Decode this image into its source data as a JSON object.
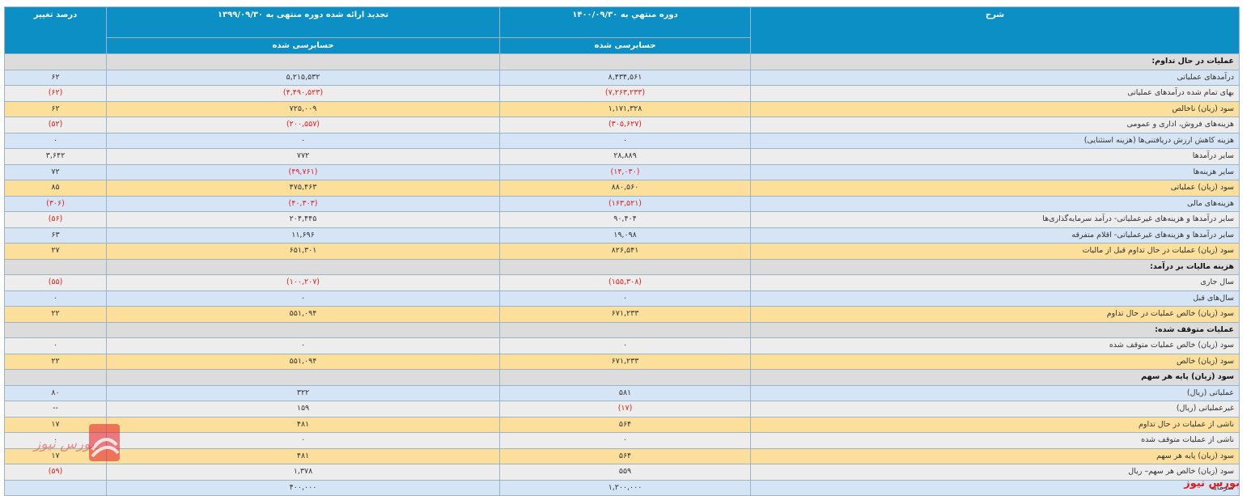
{
  "header": {
    "col_desc": "شرح",
    "col_cur": "دوره منتهي به ۱۴۰۰/۰۹/۳۰",
    "col_prev": "تجدید ارائه شده دوره منتهی به ۱۳۹۹/۰۹/۳۰",
    "col_pct": "درصد تغییر",
    "audit_cur": "حسابرسی شده",
    "audit_prev": "حسابرسی شده"
  },
  "rows": [
    {
      "type": "section",
      "desc": "عملیات در حال تداوم:",
      "cur": "",
      "prev": "",
      "pct": ""
    },
    {
      "type": "blue",
      "desc": "درآمدهای عملیاتی",
      "cur": "۸,۴۳۴,۵۶۱",
      "prev": "۵,۲۱۵,۵۳۲",
      "pct": "۶۲"
    },
    {
      "type": "gray",
      "desc": "بهای تمام شده درآمدهای عملیاتی",
      "cur": "(۷,۲۶۳,۲۳۳)",
      "prev": "(۴,۴۹۰,۵۲۳)",
      "pct": "(۶۲)"
    },
    {
      "type": "yellow",
      "desc": "سود (زیان) ناخالص",
      "cur": "۱,۱۷۱,۳۲۸",
      "prev": "۷۲۵,۰۰۹",
      "pct": "۶۲"
    },
    {
      "type": "gray",
      "desc": "هزینه‌های فروش، اداری و عمومی",
      "cur": "(۳۰۵,۶۲۷)",
      "prev": "(۲۰۰,۵۵۷)",
      "pct": "(۵۲)"
    },
    {
      "type": "blue",
      "desc": "هزینه کاهش ارزش دریافتنی‌ها (هزینه استثنایی)",
      "cur": "۰",
      "prev": "۰",
      "pct": "۰"
    },
    {
      "type": "gray",
      "desc": "سایر درآمدها",
      "cur": "۲۸,۸۸۹",
      "prev": "۷۷۲",
      "pct": "۳,۶۴۲"
    },
    {
      "type": "blue",
      "desc": "سایر هزینه‌ها",
      "cur": "(۱۴,۰۳۰)",
      "prev": "(۴۹,۷۶۱)",
      "pct": "۷۲"
    },
    {
      "type": "yellow",
      "desc": "سود (زیان) عملیاتی",
      "cur": "۸۸۰,۵۶۰",
      "prev": "۴۷۵,۴۶۳",
      "pct": "۸۵"
    },
    {
      "type": "blue",
      "desc": "هزینه‌های مالی",
      "cur": "(۱۶۳,۵۲۱)",
      "prev": "(۴۰,۳۰۳)",
      "pct": "(۳۰۶)"
    },
    {
      "type": "gray",
      "desc": "سایر درآمدها و هزینه‌های غیرعملیاتی- درآمد سرمایه‌گذاری‌ها",
      "cur": "۹۰,۴۰۴",
      "prev": "۲۰۴,۴۴۵",
      "pct": "(۵۶)"
    },
    {
      "type": "blue",
      "desc": "سایر درآمدها و هزینه‌های غیرعملیاتی- اقلام متفرقه",
      "cur": "۱۹,۰۹۸",
      "prev": "۱۱,۶۹۶",
      "pct": "۶۳"
    },
    {
      "type": "yellow",
      "desc": "سود (زیان) عملیات در حال تداوم قبل از مالیات",
      "cur": "۸۲۶,۵۴۱",
      "prev": "۶۵۱,۳۰۱",
      "pct": "۲۷"
    },
    {
      "type": "section",
      "desc": "هزینه مالیات بر درآمد:",
      "cur": "",
      "prev": "",
      "pct": ""
    },
    {
      "type": "gray",
      "desc": "سال جاری",
      "cur": "(۱۵۵,۳۰۸)",
      "prev": "(۱۰۰,۲۰۷)",
      "pct": "(۵۵)"
    },
    {
      "type": "blue",
      "desc": "سال‌های قبل",
      "cur": "۰",
      "prev": "۰",
      "pct": "۰"
    },
    {
      "type": "yellow",
      "desc": "سود (زیان) خالص عملیات در حال تداوم",
      "cur": "۶۷۱,۲۳۳",
      "prev": "۵۵۱,۰۹۴",
      "pct": "۲۲"
    },
    {
      "type": "section",
      "desc": "عملیات متوقف شده:",
      "cur": "",
      "prev": "",
      "pct": ""
    },
    {
      "type": "gray",
      "desc": "سود (زیان) خالص عملیات متوقف شده",
      "cur": "۰",
      "prev": "۰",
      "pct": "۰"
    },
    {
      "type": "yellow",
      "desc": "سود (زیان) خالص",
      "cur": "۶۷۱,۲۳۳",
      "prev": "۵۵۱,۰۹۴",
      "pct": "۲۲"
    },
    {
      "type": "section",
      "desc": "سود (زیان) پایه هر سهم",
      "cur": "",
      "prev": "",
      "pct": ""
    },
    {
      "type": "blue",
      "desc": "عملیاتی (ریال)",
      "cur": "۵۸۱",
      "prev": "۳۲۲",
      "pct": "۸۰"
    },
    {
      "type": "gray",
      "desc": "غیرعملیاتی (ریال)",
      "cur": "(۱۷)",
      "prev": "۱۵۹",
      "pct": "--"
    },
    {
      "type": "yellow",
      "desc": "ناشی از عملیات در حال تداوم",
      "cur": "۵۶۴",
      "prev": "۴۸۱",
      "pct": "۱۷"
    },
    {
      "type": "gray",
      "desc": "ناشی از عملیات متوقف شده",
      "cur": "۰",
      "prev": "۰",
      "pct": "۰"
    },
    {
      "type": "yellow",
      "desc": "سود (زیان) پایه هر سهم",
      "cur": "۵۶۴",
      "prev": "۴۸۱",
      "pct": "۱۷"
    },
    {
      "type": "gray",
      "desc": "سود (زیان) خالص هر سهم– ریال",
      "cur": "۵۵۹",
      "prev": "۱,۳۷۸",
      "pct": "(۵۹)"
    },
    {
      "type": "blue",
      "desc": "سرمایه",
      "cur": "۱,۲۰۰,۰۰۰",
      "prev": "۴۰۰,۰۰۰",
      "pct": ""
    }
  ],
  "watermark_text": "بورس نیوز",
  "colors": {
    "header": "#0c8fc4",
    "blue_row": "#d6e5f5",
    "gray_row": "#ededed",
    "yellow_row": "#fbdf9b",
    "section_row": "#dcdcdc",
    "negative": "#e21d1d",
    "brand": "#e31b23"
  }
}
